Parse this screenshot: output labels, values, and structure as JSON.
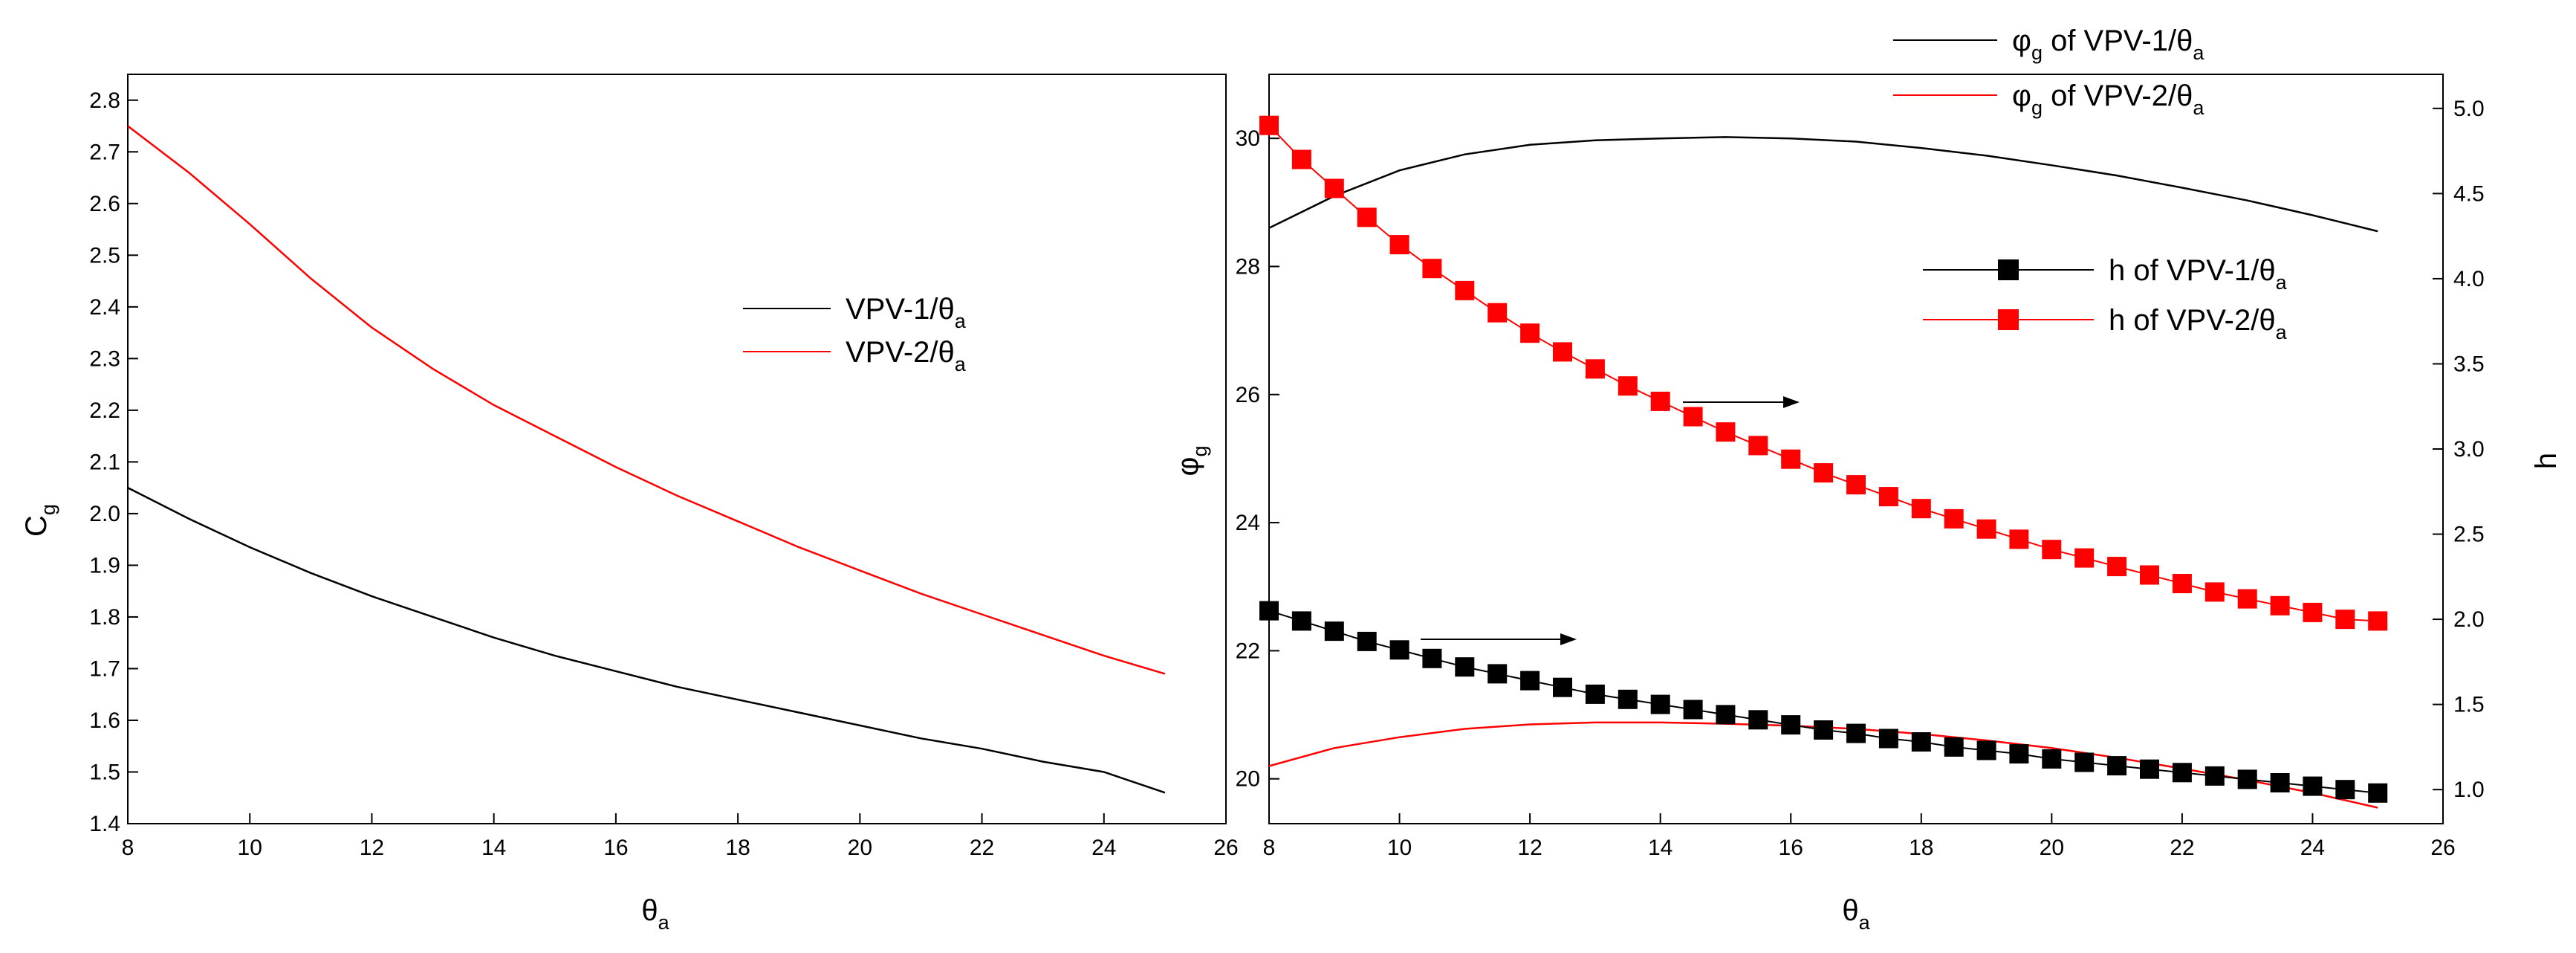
{
  "colors": {
    "vpv1": "#000000",
    "vpv2": "#ff0000",
    "axis": "#000000"
  },
  "chart_data": [
    {
      "type": "line",
      "xlabel": {
        "base": "θ",
        "sub": "a"
      },
      "ylabel": {
        "base": "C",
        "sub": "g"
      },
      "xlim": [
        8,
        26
      ],
      "ylim": [
        1.4,
        2.85
      ],
      "xticks": [
        "8",
        "10",
        "12",
        "14",
        "16",
        "18",
        "20",
        "22",
        "24",
        "26"
      ],
      "yticks": [
        "1.4",
        "1.5",
        "1.6",
        "1.7",
        "1.8",
        "1.9",
        "2.0",
        "2.1",
        "2.2",
        "2.3",
        "2.4",
        "2.5",
        "2.6",
        "2.7",
        "2.8"
      ],
      "legend_position": "center-right",
      "x": [
        8,
        9,
        10,
        11,
        12,
        13,
        14,
        15,
        16,
        17,
        18,
        19,
        20,
        21,
        22,
        23,
        24,
        25
      ],
      "series": [
        {
          "name": "VPV-1/θ",
          "name_sub": "a",
          "color": "#000000",
          "values": [
            2.05,
            1.99,
            1.935,
            1.885,
            1.84,
            1.8,
            1.76,
            1.725,
            1.695,
            1.665,
            1.64,
            1.615,
            1.59,
            1.565,
            1.545,
            1.52,
            1.5,
            1.46
          ]
        },
        {
          "name": "VPV-2/θ",
          "name_sub": "a",
          "color": "#ff0000",
          "values": [
            2.75,
            2.66,
            2.56,
            2.455,
            2.36,
            2.28,
            2.21,
            2.15,
            2.09,
            2.035,
            1.985,
            1.935,
            1.89,
            1.845,
            1.805,
            1.765,
            1.725,
            1.69
          ]
        }
      ]
    },
    {
      "type": "line",
      "xlabel": {
        "base": "θ",
        "sub": "a"
      },
      "ylabel_left": {
        "base": "φ",
        "sub": "g"
      },
      "ylabel_right": "h",
      "xlim": [
        8,
        26
      ],
      "ylim_left": [
        19.3,
        31
      ],
      "ylim_right": [
        0.8,
        5.2
      ],
      "xticks": [
        "8",
        "10",
        "12",
        "14",
        "16",
        "18",
        "20",
        "22",
        "24",
        "26"
      ],
      "yticks_left": [
        "20",
        "22",
        "24",
        "26",
        "28",
        "30"
      ],
      "yticks_right": [
        "1.0",
        "1.5",
        "2.0",
        "2.5",
        "3.0",
        "3.5",
        "4.0",
        "4.5",
        "5.0"
      ],
      "legend_position": "top-right and center-right",
      "x_phi": [
        8,
        9,
        10,
        11,
        12,
        13,
        14,
        15,
        16,
        17,
        18,
        19,
        20,
        21,
        22,
        23,
        24,
        25
      ],
      "phi_series": [
        {
          "name": "φ",
          "name_sub": "g",
          "name_rest": " of VPV-1/θ",
          "name_rest_sub": "a",
          "color": "#000000",
          "axis": "left",
          "values": [
            28.6,
            29.1,
            29.5,
            29.75,
            29.9,
            29.97,
            30.0,
            30.02,
            30.0,
            29.95,
            29.85,
            29.73,
            29.58,
            29.42,
            29.23,
            29.03,
            28.8,
            28.55
          ]
        },
        {
          "name": "φ",
          "name_sub": "g",
          "name_rest": " of VPV-2/θ",
          "name_rest_sub": "a",
          "color": "#ff0000",
          "axis": "left",
          "values": [
            20.2,
            20.48,
            20.65,
            20.78,
            20.85,
            20.88,
            20.88,
            20.86,
            20.83,
            20.78,
            20.7,
            20.6,
            20.48,
            20.33,
            20.16,
            19.98,
            19.78,
            19.55
          ]
        }
      ],
      "x_h": [
        8,
        8.5,
        9,
        9.5,
        10,
        10.5,
        11,
        11.5,
        12,
        12.5,
        13,
        13.5,
        14,
        14.5,
        15,
        15.5,
        16,
        16.5,
        17,
        17.5,
        18,
        18.5,
        19,
        19.5,
        20,
        20.5,
        21,
        21.5,
        22,
        22.5,
        23,
        23.5,
        24,
        24.5,
        25
      ],
      "h_series": [
        {
          "name": "h of VPV-1/θ",
          "name_sub": "a",
          "color": "#000000",
          "axis": "right",
          "marker": "square",
          "values": [
            2.05,
            1.99,
            1.93,
            1.87,
            1.82,
            1.77,
            1.72,
            1.68,
            1.64,
            1.6,
            1.56,
            1.53,
            1.5,
            1.47,
            1.44,
            1.41,
            1.38,
            1.35,
            1.33,
            1.3,
            1.28,
            1.25,
            1.23,
            1.21,
            1.18,
            1.16,
            1.14,
            1.12,
            1.1,
            1.08,
            1.06,
            1.04,
            1.02,
            1.0,
            0.98
          ]
        },
        {
          "name": "h of VPV-2/θ",
          "name_sub": "a",
          "color": "#ff0000",
          "axis": "right",
          "marker": "square",
          "values": [
            4.9,
            4.7,
            4.53,
            4.36,
            4.2,
            4.06,
            3.93,
            3.8,
            3.68,
            3.57,
            3.47,
            3.37,
            3.28,
            3.19,
            3.1,
            3.02,
            2.94,
            2.86,
            2.79,
            2.72,
            2.65,
            2.59,
            2.53,
            2.47,
            2.41,
            2.36,
            2.31,
            2.26,
            2.21,
            2.16,
            2.12,
            2.08,
            2.04,
            2.0,
            1.99
          ]
        }
      ],
      "annotations": [
        "arrow → right axis (h of VPV-2/θa)",
        "arrow → right axis (h of VPV-1/θa)"
      ]
    }
  ]
}
